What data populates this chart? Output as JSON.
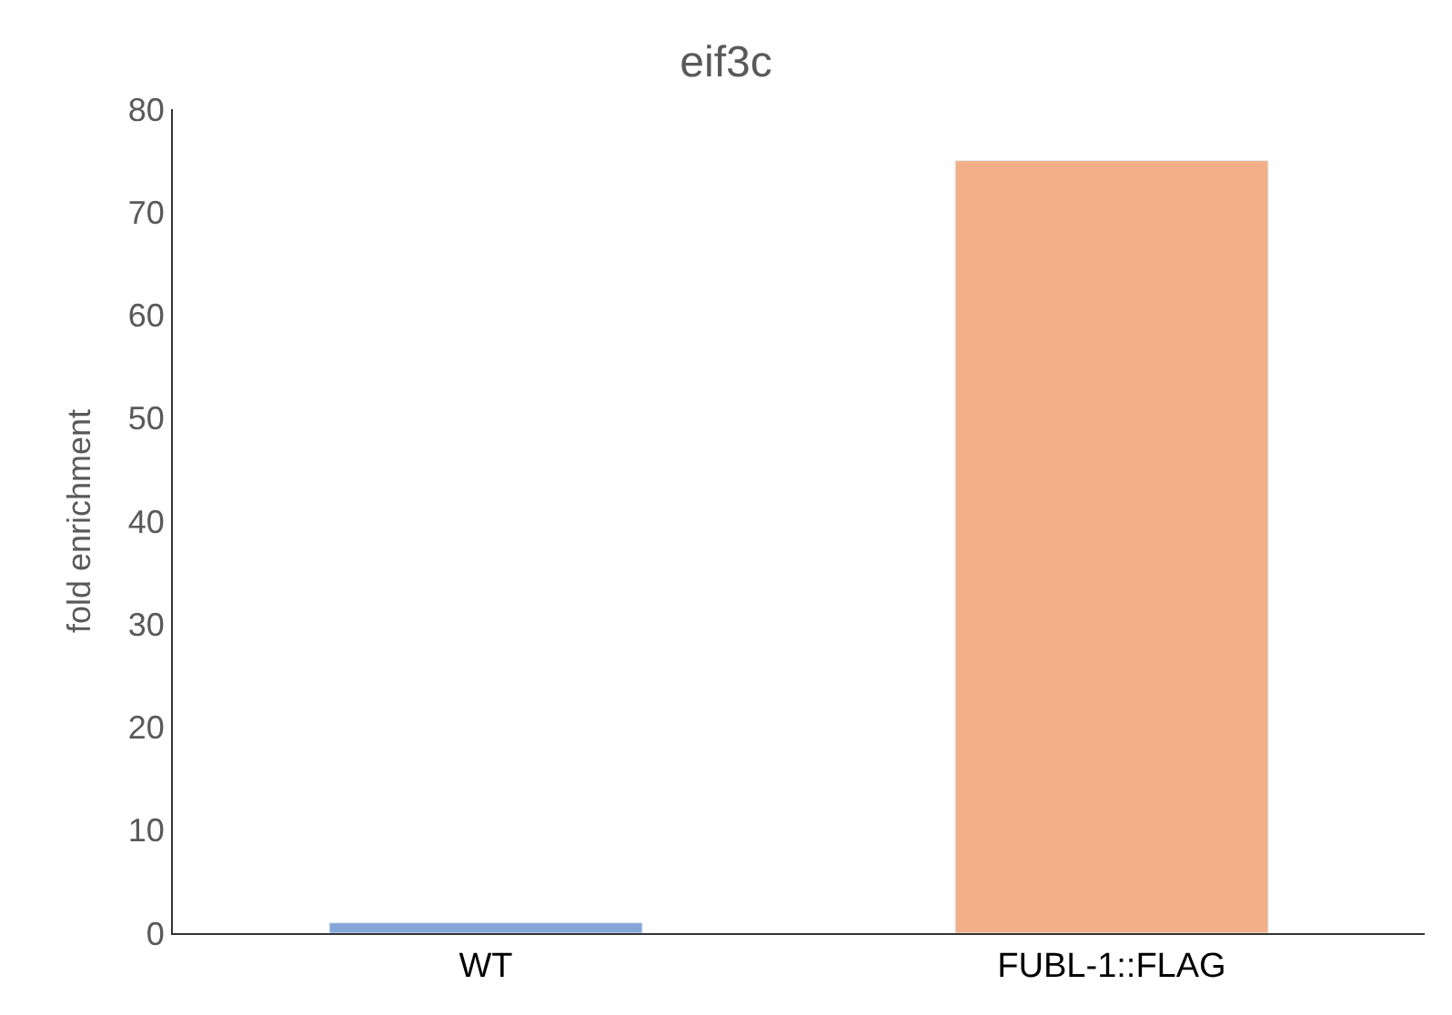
{
  "chart_data": {
    "type": "bar",
    "title": "eif3c",
    "ylabel": "fold enrichment",
    "categories": [
      "WT",
      "FUBL-1::FLAG"
    ],
    "values": [
      1,
      75
    ],
    "colors": [
      "#86a5d9",
      "#f1b088"
    ],
    "ylim": [
      0,
      80
    ],
    "yticks": [
      0,
      10,
      20,
      30,
      40,
      50,
      60,
      70,
      80
    ]
  }
}
